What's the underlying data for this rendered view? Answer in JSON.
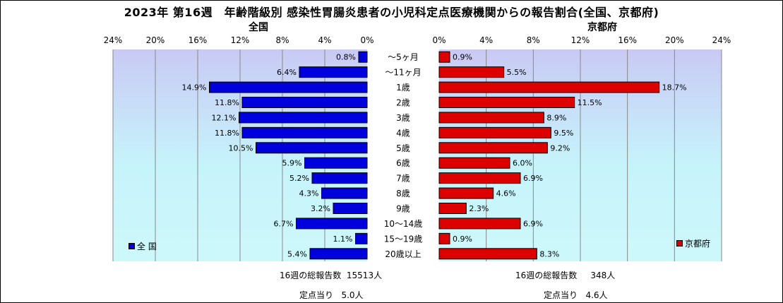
{
  "title": "2023年 第16週　年齢階級別 感染性胃腸炎患者の小児科定点医療機関からの報告割合(全国、京都府)",
  "colors": {
    "national": "#0000dd",
    "kyoto": "#dd0000"
  },
  "footer": {
    "national_total": "16週の総報告数  15513人",
    "national_per": "定点当り   5.0人",
    "kyoto_total": "16週の総報告数     348人",
    "kyoto_per": "定点当り   4.6人"
  },
  "chart_data": {
    "type": "bar",
    "orientation": "horizontal-butterfly",
    "categories": [
      "～5ヶ月",
      "～11ヶ月",
      "1歳",
      "2歳",
      "3歳",
      "4歳",
      "5歳",
      "6歳",
      "7歳",
      "8歳",
      "9歳",
      "10～14歳",
      "15～19歳",
      "20歳以上"
    ],
    "xlim": [
      0,
      24
    ],
    "ticks": [
      "0%",
      "4%",
      "8%",
      "12%",
      "16%",
      "20%",
      "24%"
    ],
    "grid": true,
    "series": [
      {
        "name": "全 国",
        "panel_title": "全国",
        "legend": "全 国",
        "values": [
          0.8,
          6.4,
          14.9,
          11.8,
          12.1,
          11.8,
          10.5,
          5.9,
          5.2,
          4.3,
          3.2,
          6.7,
          1.1,
          5.4
        ],
        "labels": [
          "0.8%",
          "6.4%",
          "14.9%",
          "11.8%",
          "12.1%",
          "11.8%",
          "10.5%",
          "5.9%",
          "5.2%",
          "4.3%",
          "3.2%",
          "6.7%",
          "1.1%",
          "5.4%"
        ]
      },
      {
        "name": "京都府",
        "panel_title": "京都府",
        "legend": "京都府",
        "values": [
          0.9,
          5.5,
          18.7,
          11.5,
          8.9,
          9.5,
          9.2,
          6.0,
          6.9,
          4.6,
          2.3,
          6.9,
          0.9,
          8.3
        ],
        "labels": [
          "0.9%",
          "5.5%",
          "18.7%",
          "11.5%",
          "8.9%",
          "9.5%",
          "9.2%",
          "6.0%",
          "6.9%",
          "4.6%",
          "2.3%",
          "6.9%",
          "0.9%",
          "8.3%"
        ]
      }
    ]
  }
}
